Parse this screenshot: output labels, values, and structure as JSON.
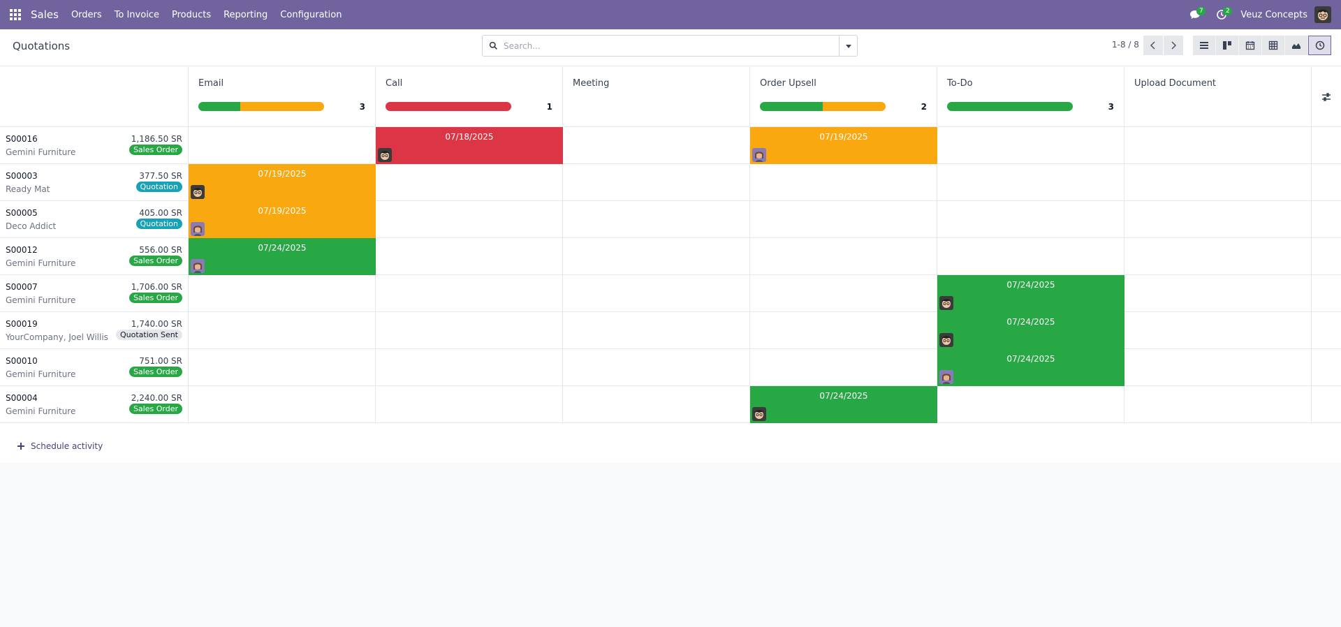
{
  "navbar": {
    "app_name": "Sales",
    "menu": [
      "Orders",
      "To Invoice",
      "Products",
      "Reporting",
      "Configuration"
    ],
    "messages_count": "7",
    "activities_count": "2",
    "company": "Veuz Concepts",
    "bg_color": "#71639e"
  },
  "control": {
    "title": "Quotations",
    "search_placeholder": "Search...",
    "pager": "1-8 / 8"
  },
  "columns": [
    {
      "title": "Email",
      "count": "3",
      "progress": {
        "green": 1,
        "orange": 2,
        "red": 0
      }
    },
    {
      "title": "Call",
      "count": "1",
      "progress": {
        "green": 0,
        "orange": 0,
        "red": 1
      }
    },
    {
      "title": "Meeting",
      "count": "",
      "progress": null
    },
    {
      "title": "Order Upsell",
      "count": "2",
      "progress": {
        "green": 1,
        "orange": 1,
        "red": 0
      }
    },
    {
      "title": "To-Do",
      "count": "3",
      "progress": {
        "green": 3,
        "orange": 0,
        "red": 0
      }
    },
    {
      "title": "Upload Document",
      "count": "",
      "progress": null
    }
  ],
  "records": [
    {
      "ref": "S00016",
      "amount": "1,186.50 SR",
      "partner": "Gemini Furniture",
      "status": "Sales Order",
      "status_type": "sales"
    },
    {
      "ref": "S00003",
      "amount": "377.50 SR",
      "partner": "Ready Mat",
      "status": "Quotation",
      "status_type": "quot"
    },
    {
      "ref": "S00005",
      "amount": "405.00 SR",
      "partner": "Deco Addict",
      "status": "Quotation",
      "status_type": "quot"
    },
    {
      "ref": "S00012",
      "amount": "556.00 SR",
      "partner": "Gemini Furniture",
      "status": "Sales Order",
      "status_type": "sales"
    },
    {
      "ref": "S00007",
      "amount": "1,706.00 SR",
      "partner": "Gemini Furniture",
      "status": "Sales Order",
      "status_type": "sales"
    },
    {
      "ref": "S00019",
      "amount": "1,740.00 SR",
      "partner": "YourCompany, Joel Willis",
      "status": "Quotation Sent",
      "status_type": "sent"
    },
    {
      "ref": "S00010",
      "amount": "751.00 SR",
      "partner": "Gemini Furniture",
      "status": "Sales Order",
      "status_type": "sales"
    },
    {
      "ref": "S00004",
      "amount": "2,240.00 SR",
      "partner": "Gemini Furniture",
      "status": "Sales Order",
      "status_type": "sales"
    }
  ],
  "activities": [
    {
      "row": 0,
      "col": 1,
      "date": "07/18/2025",
      "state": "red",
      "avatar": "male"
    },
    {
      "row": 0,
      "col": 3,
      "date": "07/19/2025",
      "state": "orange",
      "avatar": "female"
    },
    {
      "row": 1,
      "col": 0,
      "date": "07/19/2025",
      "state": "orange",
      "avatar": "male"
    },
    {
      "row": 2,
      "col": 0,
      "date": "07/19/2025",
      "state": "orange",
      "avatar": "female"
    },
    {
      "row": 3,
      "col": 0,
      "date": "07/24/2025",
      "state": "green",
      "avatar": "female"
    },
    {
      "row": 4,
      "col": 4,
      "date": "07/24/2025",
      "state": "green",
      "avatar": "male"
    },
    {
      "row": 5,
      "col": 4,
      "date": "07/24/2025",
      "state": "green",
      "avatar": "male"
    },
    {
      "row": 6,
      "col": 4,
      "date": "07/24/2025",
      "state": "green",
      "avatar": "female"
    },
    {
      "row": 7,
      "col": 3,
      "date": "07/24/2025",
      "state": "green",
      "avatar": "male"
    }
  ],
  "footer": {
    "schedule_label": "Schedule activity"
  }
}
